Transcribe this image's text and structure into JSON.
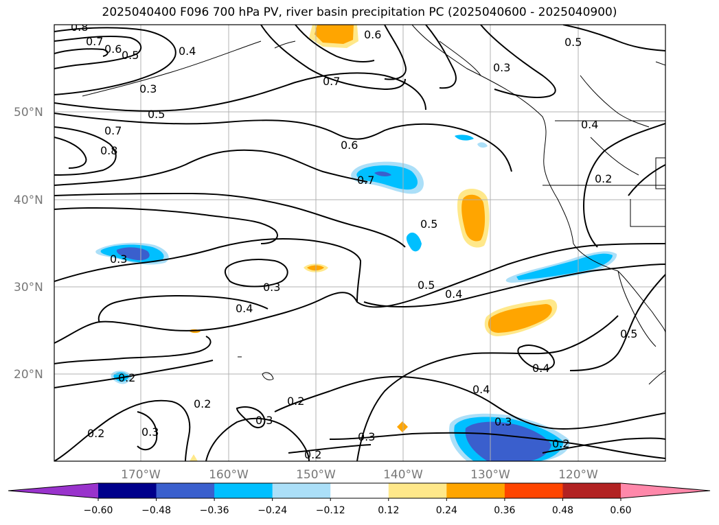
{
  "title": "2025040400 F096 700 hPa PV, river basin precipitation PC (2025040600 - 2025040900)",
  "map": {
    "lat_labels": [
      "50°N",
      "40°N",
      "30°N",
      "20°N"
    ],
    "lon_labels": [
      "170°W",
      "160°W",
      "150°W",
      "140°W",
      "130°W",
      "120°W"
    ],
    "contour_labels": [
      "0.8",
      "0.7",
      "0.6",
      "0.5",
      "0.4",
      "0.3",
      "0.5",
      "0.7",
      "0.8",
      "0.6",
      "0.7",
      "0.5",
      "0.3",
      "0.3",
      "0.4",
      "0.5",
      "0.4",
      "0.3",
      "0.4",
      "0.2",
      "0.2",
      "0.3",
      "0.2",
      "0.2",
      "0.3",
      "0.2",
      "0.2",
      "0.4",
      "0.6",
      "0.7",
      "0.5",
      "0.3",
      "0.5",
      "0.4",
      "0.2",
      "0.3"
    ],
    "colors": {
      "contour": "#000000",
      "grid": "#b0b0b0",
      "light_blue": "#abdff8",
      "blue": "#00bfff",
      "mid_blue": "#3a5fcd",
      "dark_navy": "#00008b",
      "purple": "#9933cc",
      "light_yellow": "#ffe88a",
      "orange": "#ffa500",
      "red_orange": "#ff4500",
      "brick": "#b22222",
      "pink": "#ff88aa"
    }
  },
  "colorbar": {
    "ticks": [
      "−0.60",
      "−0.48",
      "−0.36",
      "−0.24",
      "−0.12",
      "0.12",
      "0.24",
      "0.36",
      "0.48",
      "0.60"
    ],
    "colors": [
      "#9933cc",
      "#00008b",
      "#3a5fcd",
      "#00bfff",
      "#abdff8",
      "#ffffff",
      "#ffe88a",
      "#ffa500",
      "#ff4500",
      "#b22222",
      "#ff88aa"
    ]
  }
}
